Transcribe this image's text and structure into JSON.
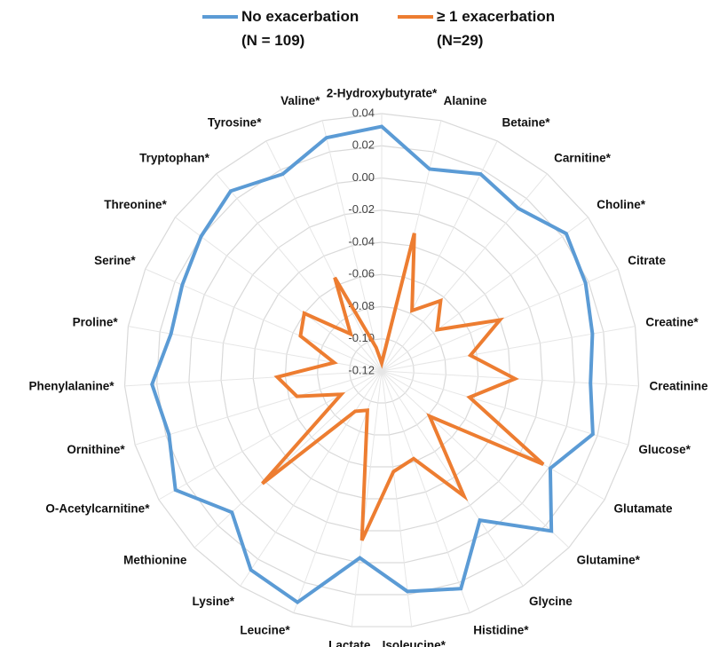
{
  "chart_data": {
    "type": "radar",
    "categories": [
      "2-Hydroxybutyrate*",
      "Alanine",
      "Betaine*",
      "Carnitine*",
      "Choline*",
      "Citrate",
      "Creatine*",
      "Creatinine",
      "Glucose*",
      "Glutamate",
      "Glutamine*",
      "Glycine",
      "Histidine*",
      "Isoleucine*",
      "Lactate",
      "Leucine*",
      "Lysine*",
      "Methionine",
      "O-Acetylcarnitine*",
      "Ornithine*",
      "Phenylalanine*",
      "Proline*",
      "Serine*",
      "Threonine*",
      "Tryptophan*",
      "Tyrosine*",
      "Valine*"
    ],
    "series": [
      {
        "name": "No exacerbation\n(N = 109)",
        "color": "#5b9bd5",
        "values": [
          0.032,
          0.009,
          0.017,
          0.012,
          0.023,
          0.018,
          0.013,
          0.01,
          0.017,
          0.001,
          0.025,
          -0.009,
          0.024,
          0.018,
          -0.003,
          0.033,
          0.028,
          0.008,
          0.028,
          0.018,
          0.023,
          0.013,
          0.015,
          0.02,
          0.026,
          0.017,
          0.029
        ]
      },
      {
        "name": "≥ 1 exacerbation\n(N=29)",
        "color": "#ed7d31",
        "values": [
          -0.115,
          -0.032,
          -0.078,
          -0.063,
          -0.077,
          -0.04,
          -0.064,
          -0.037,
          -0.063,
          -0.004,
          -0.079,
          -0.027,
          -0.062,
          -0.057,
          -0.014,
          -0.094,
          -0.09,
          -0.018,
          -0.091,
          -0.065,
          -0.055,
          -0.09,
          -0.065,
          -0.06,
          -0.09,
          -0.055,
          -0.105
        ]
      }
    ],
    "ylim": [
      -0.12,
      0.04
    ],
    "yticks": [
      {
        "value": 0.04,
        "label": "0.04"
      },
      {
        "value": 0.02,
        "label": "0.02"
      },
      {
        "value": 0,
        "label": "0.00"
      },
      {
        "value": -0.02,
        "label": "-0.02"
      },
      {
        "value": -0.04,
        "label": "-0.04"
      },
      {
        "value": -0.06,
        "label": "-0.06"
      },
      {
        "value": -0.08,
        "label": "-0.08"
      },
      {
        "value": -0.1,
        "label": "-0.10"
      },
      {
        "value": -0.12,
        "label": "-0.12"
      }
    ],
    "grid": true,
    "legend": "top"
  }
}
